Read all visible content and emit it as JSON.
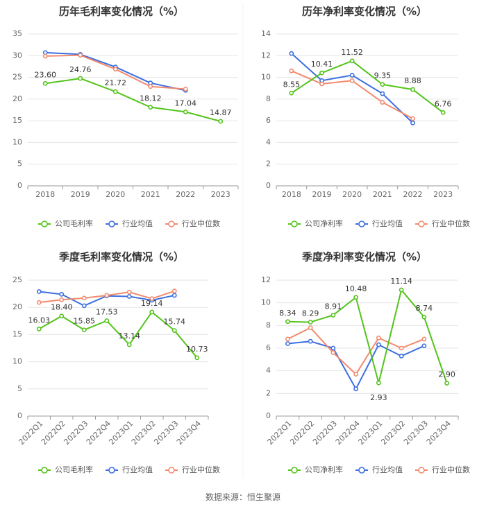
{
  "colors": {
    "company": "#52c41a",
    "industry_avg": "#3b6fe0",
    "industry_median": "#f28a6e",
    "grid": "#e6e6e6",
    "axis": "#999999",
    "title": "#333333",
    "label": "#333333"
  },
  "footer": {
    "source": "数据来源：恒生聚源"
  },
  "chart_data": [
    {
      "type": "line",
      "title": "历年毛利率变化情况（%）",
      "categories": [
        "2018",
        "2019",
        "2020",
        "2021",
        "2022",
        "2023"
      ],
      "ylim": [
        0,
        35
      ],
      "yticks": [
        "0",
        "5",
        "10",
        "15",
        "20",
        "25",
        "30",
        "35"
      ],
      "grid": true,
      "legend_position": "bottom",
      "series": [
        {
          "name": "公司毛利率",
          "values": [
            23.6,
            24.76,
            21.72,
            18.12,
            17.04,
            14.87
          ],
          "labels": [
            "23.60",
            "24.76",
            "21.72",
            "18.12",
            "17.04",
            "14.87"
          ]
        },
        {
          "name": "行业均值",
          "values": [
            30.7,
            30.3,
            27.4,
            23.7,
            22.0,
            null
          ]
        },
        {
          "name": "行业中位数",
          "values": [
            29.9,
            30.1,
            26.9,
            22.9,
            22.3,
            null
          ]
        }
      ]
    },
    {
      "type": "line",
      "title": "历年净利率变化情况（%）",
      "categories": [
        "2018",
        "2019",
        "2020",
        "2021",
        "2022",
        "2023"
      ],
      "ylim": [
        0,
        14
      ],
      "yticks": [
        "0",
        "2",
        "4",
        "6",
        "8",
        "10",
        "12",
        "14"
      ],
      "grid": true,
      "legend_position": "bottom",
      "series": [
        {
          "name": "公司净利率",
          "values": [
            8.55,
            10.41,
            11.52,
            9.35,
            8.88,
            6.76
          ],
          "labels": [
            "8.55",
            "10.41",
            "11.52",
            "9.35",
            "8.88",
            "6.76"
          ]
        },
        {
          "name": "行业均值",
          "values": [
            12.2,
            9.7,
            10.2,
            8.5,
            5.8,
            null
          ]
        },
        {
          "name": "行业中位数",
          "values": [
            10.6,
            9.4,
            9.7,
            7.7,
            6.2,
            null
          ]
        }
      ]
    },
    {
      "type": "line",
      "title": "季度毛利率变化情况（%）",
      "categories": [
        "2022Q1",
        "2022Q2",
        "2022Q3",
        "2022Q4",
        "2023Q1",
        "2023Q2",
        "2023Q3",
        "2023Q4"
      ],
      "ylim": [
        0,
        25
      ],
      "yticks": [
        "0",
        "5",
        "10",
        "15",
        "20",
        "25"
      ],
      "grid": true,
      "legend_position": "bottom",
      "series": [
        {
          "name": "公司毛利率",
          "values": [
            16.03,
            18.4,
            15.85,
            17.53,
            13.14,
            19.14,
            15.74,
            10.73
          ],
          "labels": [
            "16.03",
            "18.40",
            "15.85",
            "17.53",
            "13.14",
            "19.14",
            "15.74",
            "10.73"
          ]
        },
        {
          "name": "行业均值",
          "values": [
            22.9,
            22.4,
            20.3,
            22.1,
            22.0,
            21.3,
            22.2,
            null
          ]
        },
        {
          "name": "行业中位数",
          "values": [
            20.9,
            21.4,
            21.7,
            22.2,
            22.8,
            21.6,
            23.0,
            null
          ]
        }
      ]
    },
    {
      "type": "line",
      "title": "季度净利率变化情况（%）",
      "categories": [
        "2022Q1",
        "2022Q2",
        "2022Q3",
        "2022Q4",
        "2023Q1",
        "2023Q2",
        "2023Q3",
        "2023Q4"
      ],
      "ylim": [
        0,
        12
      ],
      "yticks": [
        "0",
        "2",
        "4",
        "6",
        "8",
        "10",
        "12"
      ],
      "grid": true,
      "legend_position": "bottom",
      "series": [
        {
          "name": "公司净利率",
          "values": [
            8.34,
            8.29,
            8.91,
            10.48,
            2.93,
            11.14,
            8.74,
            2.9
          ],
          "labels": [
            "8.34",
            "8.29",
            "8.91",
            "10.48",
            "2.93",
            "11.14",
            "8.74",
            "2.90"
          ]
        },
        {
          "name": "行业均值",
          "values": [
            6.4,
            6.6,
            6.0,
            2.4,
            6.3,
            5.3,
            6.2,
            null
          ]
        },
        {
          "name": "行业中位数",
          "values": [
            6.8,
            7.8,
            5.6,
            3.7,
            6.9,
            6.0,
            6.8,
            null
          ]
        }
      ]
    }
  ]
}
